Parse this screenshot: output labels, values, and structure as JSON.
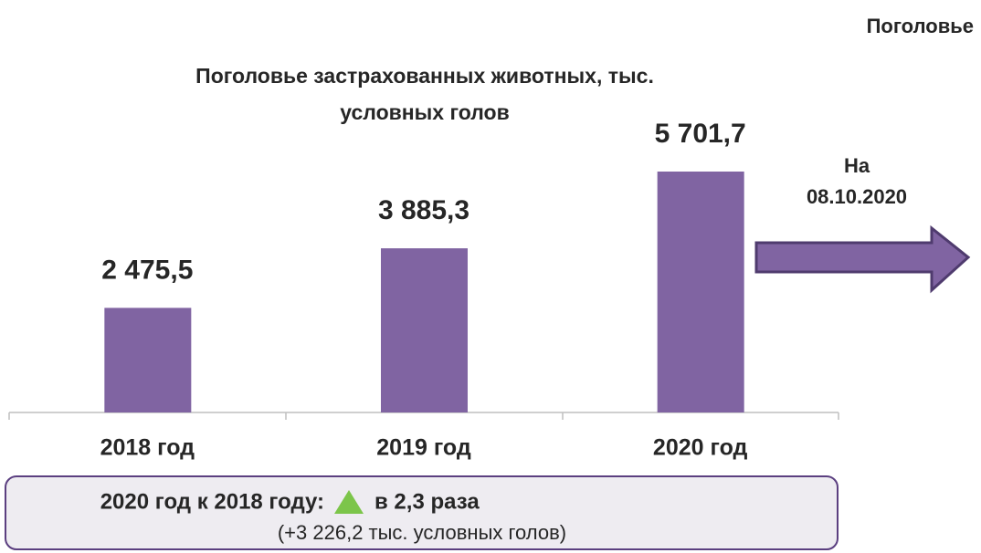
{
  "chart_data": {
    "type": "bar",
    "title": "Поголовье застрахованных животных, тыс. условных голов",
    "categories": [
      "2018 год",
      "2019 год",
      "2020 год"
    ],
    "values": [
      2475.5,
      3885.3,
      5701.7
    ],
    "value_labels": [
      "2 475,5",
      "3 885,3",
      "5 701,7"
    ],
    "color": "#8064a2"
  },
  "header": "Поголовье",
  "arrow": {
    "line1": "На",
    "line2": "08.10.2020"
  },
  "summary": {
    "lead": "2020 год к 2018 году:",
    "change": "в 2,3 раза",
    "note": "(+3 226,2 тыс. условных голов)"
  }
}
